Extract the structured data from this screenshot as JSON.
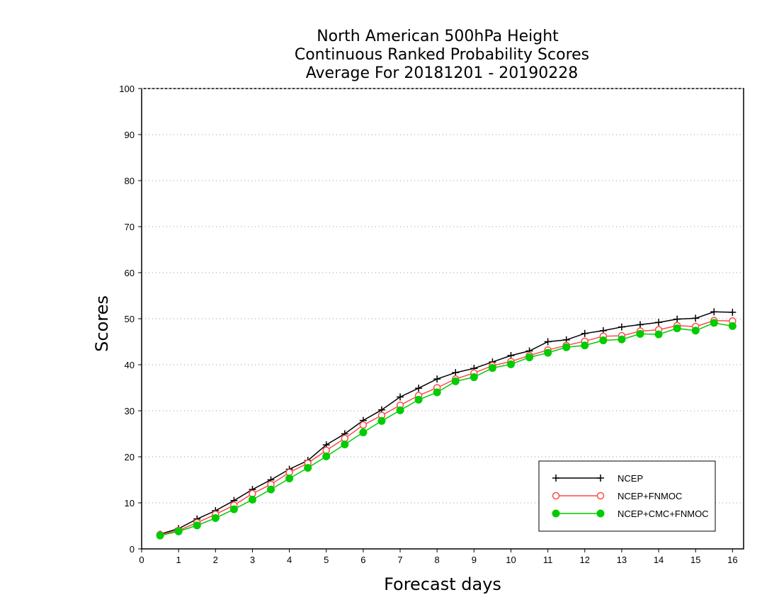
{
  "chart_data": {
    "type": "line",
    "title": [
      "North American 500hPa Height",
      "Continuous Ranked Probability Scores",
      "Average For 20181201 - 20190228"
    ],
    "xlabel": "Forecast days",
    "ylabel": "Scores",
    "xlim": [
      0,
      16.3
    ],
    "ylim": [
      0,
      100
    ],
    "xticks": [
      0,
      1,
      2,
      3,
      4,
      5,
      6,
      7,
      8,
      9,
      10,
      11,
      12,
      13,
      14,
      15,
      16
    ],
    "yticks": [
      0,
      10,
      20,
      30,
      40,
      50,
      60,
      70,
      80,
      90,
      100
    ],
    "grid": "horizontal dotted",
    "legend_position": "bottom-right",
    "x": [
      0.5,
      1,
      1.5,
      2,
      2.5,
      3,
      3.5,
      4,
      4.5,
      5,
      5.5,
      6,
      6.5,
      7,
      7.5,
      8,
      8.5,
      9,
      9.5,
      10,
      10.5,
      11,
      11.5,
      12,
      12.5,
      13,
      13.5,
      14,
      14.5,
      15,
      15.5,
      16
    ],
    "series": [
      {
        "name": "NCEP",
        "color": "#000000",
        "marker": "plus",
        "values": [
          3.2,
          4.4,
          6.5,
          8.3,
          10.5,
          12.9,
          15.0,
          17.3,
          19.2,
          22.6,
          25.0,
          27.9,
          30.2,
          33.0,
          34.9,
          36.9,
          38.3,
          39.2,
          40.6,
          42.0,
          43.0,
          45.0,
          45.4,
          46.8,
          47.4,
          48.2,
          48.7,
          49.2,
          49.9,
          50.1,
          51.5,
          51.4
        ]
      },
      {
        "name": "NCEP+FNMOC",
        "color": "#ff4a4a",
        "marker": "open-circle",
        "values": [
          3.1,
          4.0,
          5.7,
          7.5,
          9.5,
          12.0,
          14.0,
          16.6,
          18.6,
          21.4,
          24.0,
          26.9,
          29.0,
          31.2,
          33.3,
          35.0,
          36.9,
          38.2,
          39.8,
          40.7,
          42.0,
          43.2,
          44.2,
          45.1,
          46.2,
          46.3,
          47.3,
          47.6,
          48.5,
          48.3,
          49.6,
          49.5
        ]
      },
      {
        "name": "NCEP+CMC+FNMOC",
        "color": "#00cc00",
        "marker": "filled-circle",
        "values": [
          2.9,
          3.8,
          5.1,
          6.7,
          8.6,
          10.7,
          12.9,
          15.3,
          17.6,
          20.1,
          22.7,
          25.3,
          27.8,
          30.1,
          32.4,
          34.0,
          36.4,
          37.3,
          39.3,
          40.1,
          41.6,
          42.6,
          43.8,
          44.2,
          45.3,
          45.5,
          46.7,
          46.6,
          47.9,
          47.4,
          49.1,
          48.4
        ]
      }
    ]
  }
}
